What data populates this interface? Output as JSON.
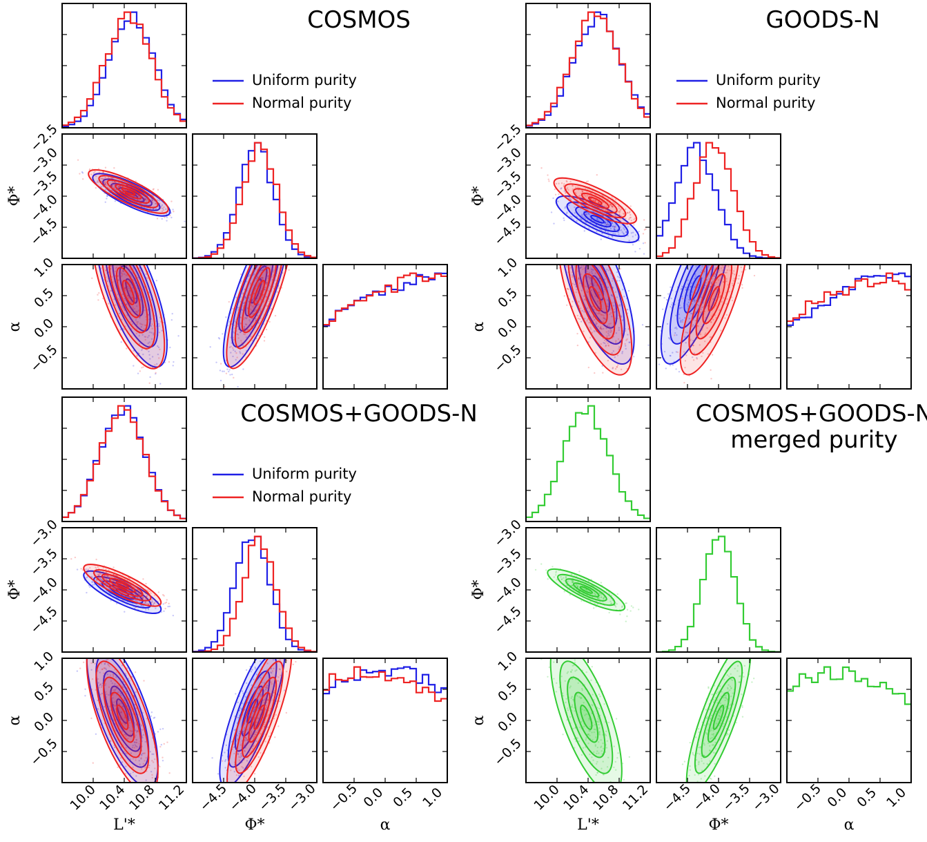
{
  "colors": {
    "uniform": "#1f1fe6",
    "normal": "#ee2222",
    "merged": "#33cc33"
  },
  "chart_data": [
    {
      "type": "corner",
      "title": "COSMOS",
      "variables": [
        "L'*",
        "Φ*",
        "α"
      ],
      "legend": [
        "Uniform purity",
        "Normal purity"
      ],
      "legend_position": "right of top panel",
      "ranges": {
        "L": [
          9.8,
          11.45
        ],
        "Phi": [
          -5.2,
          -2.5
        ],
        "alpha": [
          -0.95,
          1.05
        ]
      },
      "ticks": {
        "L": [
          "10.0",
          "10.4",
          "10.8",
          "11.2"
        ],
        "Phi": [
          "−4.5",
          "−4.0",
          "−3.5",
          "−3.0",
          "−2.5"
        ],
        "Phi_x": [
          "−4.5",
          "−4.0",
          "−3.5",
          "−3.0"
        ],
        "alpha": [
          "−0.5",
          "0.0",
          "0.5",
          "1.0"
        ]
      },
      "series": [
        {
          "name": "Uniform purity",
          "color_key": "uniform",
          "marginals": {
            "L": {
              "mean": 10.72,
              "sd": 0.3
            },
            "Phi": {
              "mean": -3.82,
              "sd": 0.38
            },
            "alpha_peak": 0.85
          }
        },
        {
          "name": "Normal purity",
          "color_key": "normal",
          "marginals": {
            "L": {
              "mean": 10.68,
              "sd": 0.31
            },
            "Phi": {
              "mean": -3.75,
              "sd": 0.38
            },
            "alpha_peak": 0.8
          }
        }
      ]
    },
    {
      "type": "corner",
      "title": "GOODS-N",
      "variables": [
        "L'*",
        "Φ*",
        "α"
      ],
      "legend": [
        "Uniform purity",
        "Normal purity"
      ],
      "legend_position": "right of top panel",
      "ranges": {
        "L": [
          9.8,
          11.45
        ],
        "Phi": [
          -5.2,
          -2.5
        ],
        "alpha": [
          -0.95,
          1.05
        ]
      },
      "ticks": {
        "L": [
          "10.0",
          "10.4",
          "10.8",
          "11.2"
        ],
        "Phi": [
          "−4.5",
          "−4.0",
          "−3.5",
          "−3.0",
          "−2.5"
        ],
        "Phi_x": [
          "−4.5",
          "−4.0",
          "−3.5",
          "−3.0"
        ],
        "alpha": [
          "−0.5",
          "0.0",
          "0.5",
          "1.0"
        ]
      },
      "series": [
        {
          "name": "Uniform purity",
          "color_key": "uniform",
          "marginals": {
            "L": {
              "mean": 10.75,
              "sd": 0.32
            },
            "Phi": {
              "mean": -4.35,
              "sd": 0.45
            },
            "alpha_peak": 0.95
          }
        },
        {
          "name": "Normal purity",
          "color_key": "normal",
          "marginals": {
            "L": {
              "mean": 10.72,
              "sd": 0.32
            },
            "Phi": {
              "mean": -3.95,
              "sd": 0.42
            },
            "alpha_peak": 0.6
          }
        }
      ]
    },
    {
      "type": "corner",
      "title": "COSMOS+GOODS-N",
      "variables": [
        "L'*",
        "Φ*",
        "α"
      ],
      "legend": [
        "Uniform purity",
        "Normal purity"
      ],
      "legend_position": "right of top panel",
      "ranges": {
        "L": [
          9.8,
          11.45
        ],
        "Phi": [
          -5.2,
          -2.5
        ],
        "alpha": [
          -0.95,
          1.05
        ]
      },
      "ticks": {
        "L": [
          "10.0",
          "10.4",
          "10.8",
          "11.2"
        ],
        "Phi": [
          "−4.5",
          "−4.0",
          "−3.5",
          "−3.0"
        ],
        "Phi_x": [
          "−4.5",
          "−4.0",
          "−3.5",
          "−3.0"
        ],
        "alpha": [
          "−0.5",
          "0.0",
          "0.5",
          "1.0"
        ]
      },
      "series": [
        {
          "name": "Uniform purity",
          "color_key": "uniform",
          "marginals": {
            "L": {
              "mean": 10.6,
              "sd": 0.3
            },
            "Phi": {
              "mean": -3.9,
              "sd": 0.38
            },
            "alpha_peak": 0.0
          }
        },
        {
          "name": "Normal purity",
          "color_key": "normal",
          "marginals": {
            "L": {
              "mean": 10.6,
              "sd": 0.3
            },
            "Phi": {
              "mean": -3.75,
              "sd": 0.36
            },
            "alpha_peak": -0.2
          }
        }
      ]
    },
    {
      "type": "corner",
      "title": "COSMOS+GOODS-N\nmerged purity",
      "variables": [
        "L'*",
        "Φ*",
        "α"
      ],
      "legend": [],
      "ranges": {
        "L": [
          9.8,
          11.45
        ],
        "Phi": [
          -5.2,
          -2.5
        ],
        "alpha": [
          -0.95,
          1.05
        ]
      },
      "ticks": {
        "L": [
          "10.0",
          "10.4",
          "10.8",
          "11.2"
        ],
        "Phi": [
          "−4.5",
          "−4.0",
          "−3.5",
          "−3.0"
        ],
        "Phi_x": [
          "−4.5",
          "−4.0",
          "−3.5",
          "−3.0"
        ],
        "alpha": [
          "−0.5",
          "0.0",
          "0.5",
          "1.0"
        ]
      },
      "series": [
        {
          "color_key": "merged",
          "marginals": {
            "L": {
              "mean": 10.6,
              "sd": 0.3
            },
            "Phi": {
              "mean": -3.85,
              "sd": 0.35
            },
            "alpha_peak": -0.2
          }
        }
      ]
    }
  ]
}
